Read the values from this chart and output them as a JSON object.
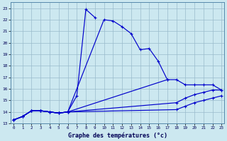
{
  "xlabel": "Graphe des températures (°c)",
  "background_color": "#cce8f0",
  "line_color": "#0000cc",
  "grid_color": "#99bbcc",
  "hours": [
    0,
    1,
    2,
    3,
    4,
    5,
    6,
    7,
    8,
    9,
    10,
    11,
    12,
    13,
    14,
    15,
    16,
    17,
    18,
    19,
    20,
    21,
    22,
    23
  ],
  "curve_spike": [
    13.3,
    13.6,
    14.1,
    14.1,
    14.0,
    13.9,
    14.0,
    15.4,
    22.9,
    22.2,
    null,
    null,
    null,
    null,
    null,
    null,
    null,
    null,
    null,
    null,
    null,
    null,
    null,
    null
  ],
  "curve_main": [
    13.3,
    13.6,
    14.1,
    14.1,
    14.0,
    13.9,
    14.0,
    null,
    null,
    null,
    22.0,
    21.9,
    21.4,
    20.8,
    19.4,
    19.5,
    18.4,
    16.8,
    null,
    null,
    null,
    null,
    null,
    null
  ],
  "curve_upper": [
    13.3,
    13.6,
    14.1,
    14.1,
    14.0,
    13.9,
    14.0,
    null,
    null,
    null,
    null,
    null,
    null,
    null,
    null,
    null,
    null,
    16.8,
    16.8,
    16.35,
    16.35,
    16.35,
    16.35,
    15.9
  ],
  "curve_mid": [
    13.3,
    13.6,
    14.1,
    14.1,
    14.0,
    13.9,
    14.0,
    null,
    null,
    null,
    null,
    null,
    null,
    null,
    null,
    null,
    null,
    null,
    14.8,
    15.2,
    15.5,
    15.7,
    15.9,
    15.9
  ],
  "curve_lower": [
    13.3,
    13.6,
    14.1,
    14.1,
    14.0,
    13.9,
    14.0,
    null,
    null,
    null,
    null,
    null,
    null,
    null,
    null,
    null,
    null,
    null,
    14.2,
    14.5,
    14.8,
    15.0,
    15.2,
    15.4
  ],
  "ylim": [
    13.0,
    23.5
  ],
  "xlim": [
    -0.3,
    23.3
  ],
  "yticks": [
    13,
    14,
    15,
    16,
    17,
    18,
    19,
    20,
    21,
    22,
    23
  ],
  "xticks": [
    0,
    1,
    2,
    3,
    4,
    5,
    6,
    7,
    8,
    9,
    10,
    11,
    12,
    13,
    14,
    15,
    16,
    17,
    18,
    19,
    20,
    21,
    22,
    23
  ]
}
